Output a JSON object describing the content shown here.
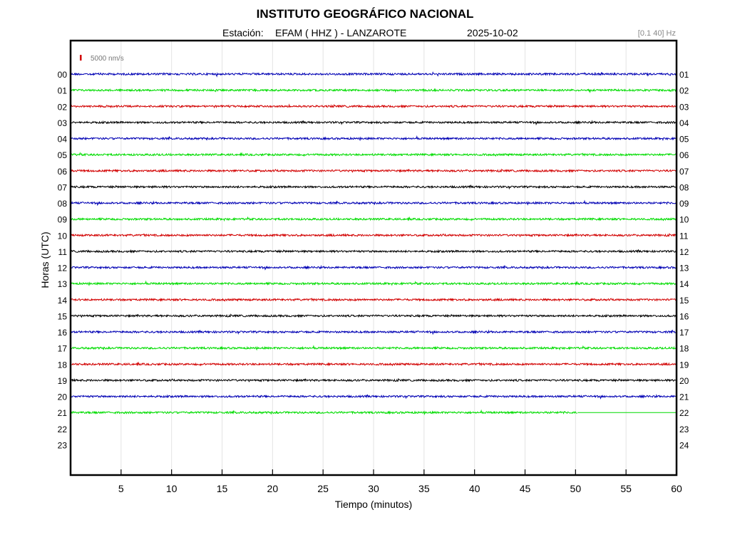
{
  "header": {
    "title": "INSTITUTO GEOGRÁFICO NACIONAL",
    "station_label": "Estación:",
    "station": "EFAM ( HHZ ) - LANZAROTE",
    "date": "2025-10-02",
    "filter": "[0.1 40] Hz"
  },
  "colors": {
    "trace_cycle": [
      "#0000b4",
      "#00dc00",
      "#d20000",
      "#000000"
    ],
    "scale_bar": "#d20000"
  },
  "chart_data": {
    "type": "line",
    "title": "INSTITUTO GEOGRÁFICO NACIONAL",
    "xlabel": "Tiempo (minutos)",
    "ylabel": "Horas (UTC)",
    "xlim": [
      0,
      60
    ],
    "x_ticks": [
      5,
      10,
      15,
      20,
      25,
      30,
      35,
      40,
      45,
      50,
      55,
      60
    ],
    "y_ticks_left": [
      "00",
      "01",
      "02",
      "03",
      "04",
      "05",
      "06",
      "07",
      "08",
      "09",
      "10",
      "11",
      "12",
      "13",
      "14",
      "15",
      "16",
      "17",
      "18",
      "19",
      "20",
      "21",
      "22",
      "23"
    ],
    "y_ticks_right": [
      "01",
      "02",
      "03",
      "04",
      "05",
      "06",
      "07",
      "08",
      "09",
      "10",
      "11",
      "12",
      "13",
      "14",
      "15",
      "16",
      "17",
      "18",
      "19",
      "20",
      "21",
      "22",
      "23",
      "24"
    ],
    "scale_label": "5000 nm/s",
    "grid": true,
    "series": [
      {
        "hour": "00",
        "start_min": 0,
        "end_min": 60
      },
      {
        "hour": "01",
        "start_min": 0,
        "end_min": 60
      },
      {
        "hour": "02",
        "start_min": 0,
        "end_min": 60
      },
      {
        "hour": "03",
        "start_min": 0,
        "end_min": 60
      },
      {
        "hour": "04",
        "start_min": 0,
        "end_min": 60
      },
      {
        "hour": "05",
        "start_min": 0,
        "end_min": 60
      },
      {
        "hour": "06",
        "start_min": 0,
        "end_min": 60
      },
      {
        "hour": "07",
        "start_min": 0,
        "end_min": 60
      },
      {
        "hour": "08",
        "start_min": 0,
        "end_min": 60
      },
      {
        "hour": "09",
        "start_min": 0,
        "end_min": 60
      },
      {
        "hour": "10",
        "start_min": 0,
        "end_min": 60
      },
      {
        "hour": "11",
        "start_min": 0,
        "end_min": 60
      },
      {
        "hour": "12",
        "start_min": 0,
        "end_min": 60
      },
      {
        "hour": "13",
        "start_min": 0,
        "end_min": 60
      },
      {
        "hour": "14",
        "start_min": 0,
        "end_min": 60
      },
      {
        "hour": "15",
        "start_min": 0,
        "end_min": 60
      },
      {
        "hour": "16",
        "start_min": 0,
        "end_min": 60
      },
      {
        "hour": "17",
        "start_min": 0,
        "end_min": 60
      },
      {
        "hour": "18",
        "start_min": 0,
        "end_min": 60
      },
      {
        "hour": "19",
        "start_min": 0,
        "end_min": 60
      },
      {
        "hour": "20",
        "start_min": 0,
        "end_min": 60
      },
      {
        "hour": "21",
        "start_min": 0,
        "end_min": 50.2
      }
    ]
  }
}
